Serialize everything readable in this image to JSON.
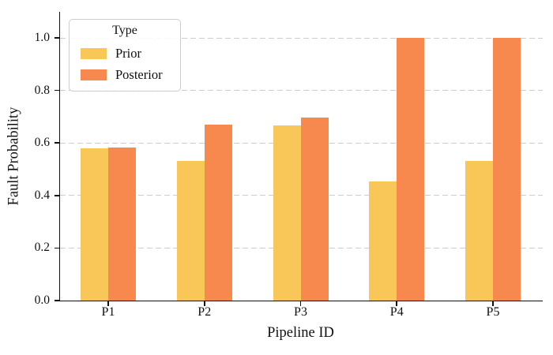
{
  "chart_data": {
    "type": "bar",
    "title": "",
    "xlabel": "Pipeline ID",
    "ylabel": "Fault Probability",
    "categories": [
      "P1",
      "P2",
      "P3",
      "P4",
      "P5"
    ],
    "series": [
      {
        "name": "Prior",
        "color": "#F8C757",
        "values": [
          0.58,
          0.533,
          0.668,
          0.455,
          0.533
        ]
      },
      {
        "name": "Posterior",
        "color": "#F7894E",
        "values": [
          0.583,
          0.671,
          0.697,
          1.0,
          1.0
        ]
      }
    ],
    "ylim": [
      0.0,
      1.1
    ],
    "ytick_labels": [
      "0.0",
      "0.2",
      "0.4",
      "0.6",
      "0.8",
      "1.0"
    ],
    "ytick_values": [
      0.0,
      0.2,
      0.4,
      0.6,
      0.8,
      1.0
    ],
    "grid": "horizontal-dashed",
    "legend": {
      "title": "Type",
      "position": "upper-left",
      "entries": [
        "Prior",
        "Posterior"
      ]
    },
    "colors": {
      "prior": "#F8C757",
      "posterior": "#F7894E",
      "gridline": "#cdcdcd",
      "axis": "#111111",
      "background": "#ffffff"
    }
  }
}
